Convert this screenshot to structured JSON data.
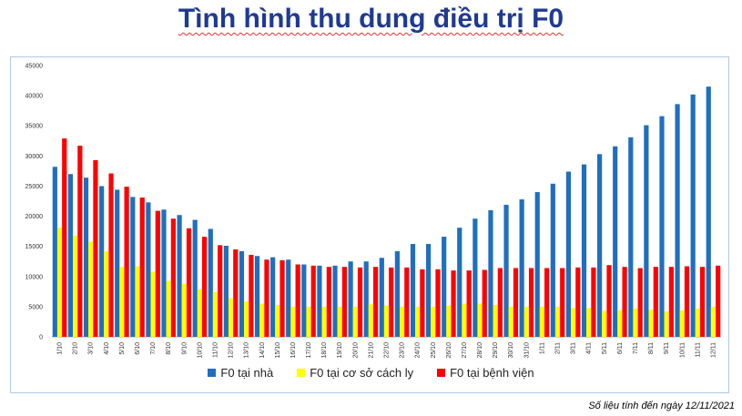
{
  "title": "Tình hình thu dung điều trị F0",
  "footnote": "Số liệu tính đến ngày 12/11/2021",
  "chart_data": {
    "type": "bar",
    "title": "Tình hình thu dung điều trị F0",
    "xlabel": "",
    "ylabel": "",
    "ylim": [
      0,
      45000
    ],
    "yticks": [
      0,
      5000,
      10000,
      15000,
      20000,
      25000,
      30000,
      35000,
      40000,
      45000
    ],
    "grid": false,
    "legend_position": "bottom",
    "categories": [
      "1/10",
      "2/10",
      "3/10",
      "4/10",
      "5/10",
      "6/10",
      "7/10",
      "8/10",
      "9/10",
      "10/10",
      "11/10",
      "12/10",
      "13/10",
      "14/10",
      "15/10",
      "16/10",
      "17/10",
      "18/10",
      "19/10",
      "20/10",
      "21/10",
      "22/10",
      "23/10",
      "24/10",
      "25/10",
      "26/10",
      "27/10",
      "28/10",
      "29/10",
      "30/10",
      "31/10",
      "1/11",
      "2/11",
      "3/11",
      "4/11",
      "5/11",
      "6/11",
      "7/11",
      "8/11",
      "9/11",
      "10/11",
      "11/11",
      "12/11"
    ],
    "series": [
      {
        "name": "F0 tại nhà",
        "color": "#1f6fc0",
        "values": [
          28200,
          27000,
          26400,
          25000,
          24400,
          23200,
          22300,
          21100,
          20200,
          19400,
          17900,
          15100,
          14200,
          13400,
          13200,
          12800,
          12000,
          11800,
          11800,
          12500,
          12500,
          13100,
          14200,
          15400,
          15400,
          16600,
          18100,
          19600,
          21000,
          21900,
          22800,
          24000,
          25400,
          27400,
          28600,
          30300,
          31600,
          33100,
          35100,
          36600,
          38600,
          40200,
          41500
        ]
      },
      {
        "name": "F0 tại cơ sở cách ly",
        "color": "#ffff00",
        "values": [
          18100,
          16800,
          15800,
          14200,
          11600,
          11700,
          10800,
          9300,
          8800,
          7900,
          7400,
          6400,
          5900,
          5500,
          5300,
          5000,
          5000,
          5000,
          5000,
          5000,
          5400,
          5200,
          5000,
          5000,
          5000,
          5200,
          5500,
          5500,
          5300,
          5000,
          5000,
          5000,
          5000,
          4800,
          4800,
          4300,
          4400,
          4700,
          4500,
          4200,
          4400,
          4700,
          5000
        ]
      },
      {
        "name": "F0 tại bệnh viện",
        "color": "#ff0000",
        "values": [
          32900,
          31700,
          29300,
          27100,
          24900,
          23100,
          20900,
          19600,
          18000,
          16600,
          15200,
          14500,
          13600,
          12800,
          12700,
          12000,
          11800,
          11600,
          11600,
          11500,
          11600,
          11500,
          11500,
          11200,
          11200,
          11000,
          11000,
          11100,
          11400,
          11400,
          11400,
          11400,
          11400,
          11500,
          11500,
          11900,
          11600,
          11400,
          11600,
          11600,
          11700,
          11600,
          11800
        ]
      }
    ]
  }
}
